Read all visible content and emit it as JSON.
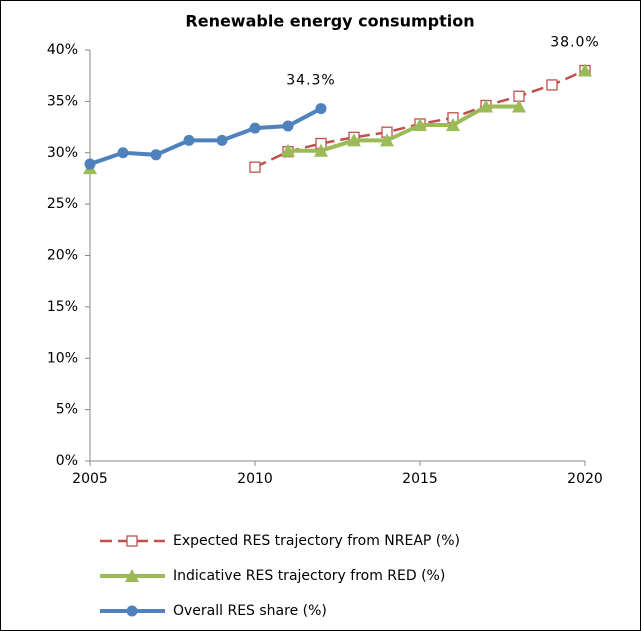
{
  "chart_data": {
    "type": "line",
    "title": "Renewable energy consumption",
    "x": [
      2005,
      2006,
      2007,
      2008,
      2009,
      2010,
      2011,
      2012,
      2013,
      2014,
      2015,
      2016,
      2017,
      2018,
      2019,
      2020
    ],
    "xlim": [
      2005,
      2020
    ],
    "xticks": [
      2005,
      2010,
      2015,
      2020
    ],
    "ylim": [
      0,
      40
    ],
    "yticks": [
      {
        "value": 0,
        "label": "0%"
      },
      {
        "value": 5,
        "label": "5%"
      },
      {
        "value": 10,
        "label": "10%"
      },
      {
        "value": 15,
        "label": "15%"
      },
      {
        "value": 20,
        "label": "20%"
      },
      {
        "value": 25,
        "label": "25%"
      },
      {
        "value": 30,
        "label": "30%"
      },
      {
        "value": 35,
        "label": "35%"
      },
      {
        "value": 40,
        "label": "40%"
      }
    ],
    "grid": false,
    "legend": "bottom",
    "series": [
      {
        "name": "Expected RES trajectory from NREAP (%)",
        "color": "#c0504d",
        "marker": "square",
        "dashed": true,
        "values": [
          null,
          null,
          null,
          null,
          null,
          28.6,
          30.1,
          30.9,
          31.5,
          32.0,
          32.8,
          33.4,
          34.6,
          35.5,
          36.6,
          38.0
        ]
      },
      {
        "name": "Indicative RES trajectory from RED (%)",
        "color": "#9bbb59",
        "marker": "triangle",
        "values": [
          28.5,
          null,
          null,
          null,
          null,
          null,
          30.2,
          30.2,
          31.2,
          31.2,
          32.7,
          32.7,
          34.5,
          34.5,
          null,
          38.0
        ],
        "value_labels": [
          null,
          null,
          null,
          null,
          null,
          null,
          null,
          null,
          null,
          null,
          null,
          null,
          null,
          null,
          null,
          "38.0%"
        ]
      },
      {
        "name": "Overall RES share (%)",
        "color": "#4f81bd",
        "marker": "circle",
        "values": [
          28.9,
          30.0,
          29.8,
          31.2,
          31.2,
          32.4,
          32.6,
          34.3,
          null,
          null,
          null,
          null,
          null,
          null,
          null,
          null
        ],
        "value_labels": [
          null,
          null,
          null,
          null,
          null,
          null,
          null,
          "34.3%",
          null,
          null,
          null,
          null,
          null,
          null,
          null,
          null
        ]
      }
    ]
  }
}
